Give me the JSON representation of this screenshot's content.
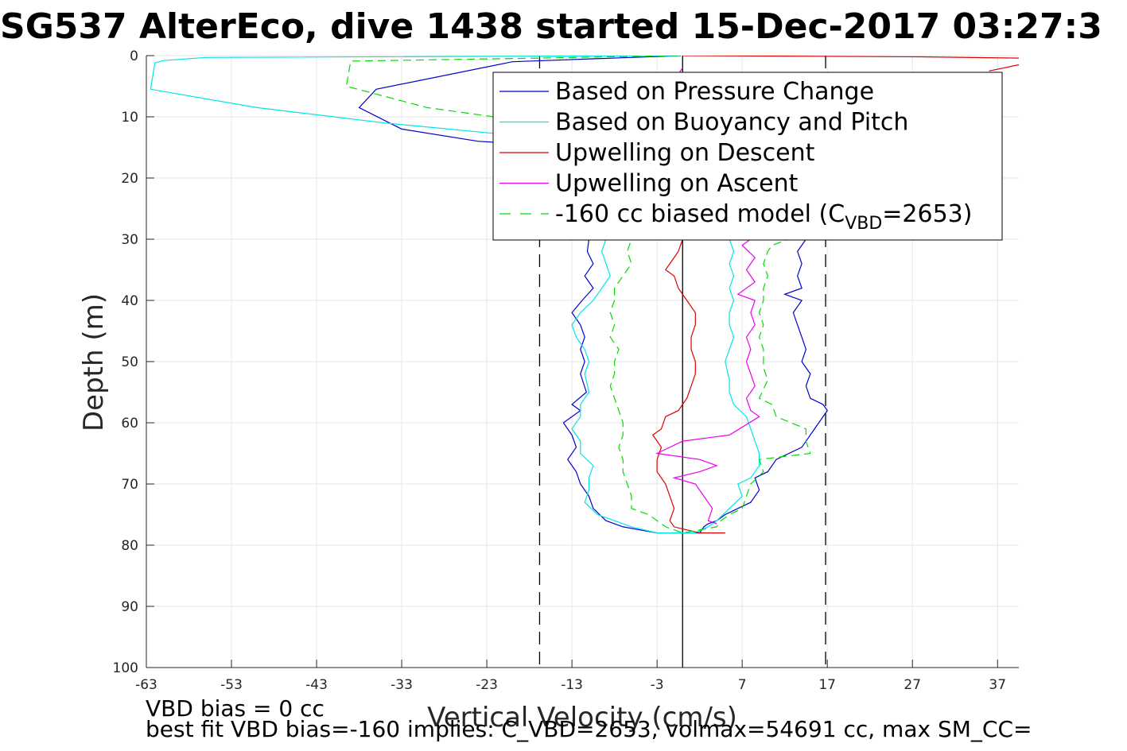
{
  "chart_data": {
    "type": "line",
    "title": "SG537 AlterEco, dive 1438 started 15-Dec-2017 03:27:3",
    "xlabel": "Vertical Velocity (cm/s)",
    "ylabel": "Depth (m)",
    "xlim": [
      -63,
      39.5
    ],
    "ylim": [
      0,
      100
    ],
    "y_reversed": true,
    "grid": true,
    "legend_position": "top-right",
    "xticks": [
      -63,
      -53,
      -43,
      -33,
      -23,
      -13,
      -3,
      7,
      17,
      27,
      37
    ],
    "yticks": [
      0,
      10,
      20,
      30,
      40,
      50,
      60,
      70,
      80,
      90,
      100
    ],
    "reference_lines": [
      {
        "x": 0,
        "style": "solid",
        "color": "#000000"
      },
      {
        "x": -16.8,
        "style": "dashed",
        "color": "#000000"
      },
      {
        "x": 16.8,
        "style": "dashed",
        "color": "#000000"
      }
    ],
    "series": [
      {
        "name": "Based on Pressure Change",
        "color": "#0000cc",
        "dash": "solid",
        "points": [
          [
            -0.2,
            0
          ],
          [
            -20,
            1
          ],
          [
            -36,
            5.5
          ],
          [
            -38,
            8.5
          ],
          [
            -33,
            12
          ],
          [
            -24,
            14
          ],
          [
            -12,
            15
          ],
          [
            -11,
            30
          ],
          [
            -11.2,
            32
          ],
          [
            -10.5,
            34
          ],
          [
            -11.5,
            36
          ],
          [
            -10.5,
            38
          ],
          [
            -11.8,
            40
          ],
          [
            -13,
            42
          ],
          [
            -12,
            44
          ],
          [
            -11.5,
            46
          ],
          [
            -12,
            48
          ],
          [
            -11.5,
            50
          ],
          [
            -12,
            52
          ],
          [
            -11.3,
            55
          ],
          [
            -13,
            57
          ],
          [
            -12,
            58
          ],
          [
            -14,
            60
          ],
          [
            -13,
            62
          ],
          [
            -12.5,
            64
          ],
          [
            -13.5,
            66
          ],
          [
            -12.5,
            68
          ],
          [
            -12,
            70
          ],
          [
            -11,
            72
          ],
          [
            -10.5,
            74
          ],
          [
            -9,
            76
          ],
          [
            -7,
            77
          ],
          [
            -5,
            77.5
          ],
          [
            -3,
            78
          ],
          [
            -1,
            78
          ],
          [
            1,
            78
          ],
          [
            2,
            78
          ],
          [
            2.5,
            77
          ],
          [
            3,
            76.5
          ],
          [
            4,
            76
          ],
          [
            5,
            75
          ],
          [
            6.5,
            74
          ],
          [
            8,
            73
          ],
          [
            9,
            71
          ],
          [
            8.5,
            69
          ],
          [
            10,
            68
          ],
          [
            11,
            66
          ],
          [
            12.5,
            65
          ],
          [
            14,
            64
          ],
          [
            15,
            62
          ],
          [
            17,
            58
          ],
          [
            16.5,
            57
          ],
          [
            15,
            56
          ],
          [
            14.5,
            54
          ],
          [
            15,
            52
          ],
          [
            14,
            50
          ],
          [
            14.5,
            48
          ],
          [
            14,
            46
          ],
          [
            13.5,
            44
          ],
          [
            13,
            42
          ],
          [
            14,
            40
          ],
          [
            12,
            39
          ],
          [
            14,
            38
          ],
          [
            13.5,
            36
          ],
          [
            14,
            34
          ],
          [
            13.5,
            32
          ],
          [
            14.5,
            30
          ]
        ]
      },
      {
        "name": "Based on Buoyancy and Pitch",
        "color": "#00e5e5",
        "dash": "solid",
        "points": [
          [
            -0.3,
            0
          ],
          [
            -56,
            0.3
          ],
          [
            -61,
            0.8
          ],
          [
            -62,
            1.2
          ],
          [
            -62.5,
            5.5
          ],
          [
            -50,
            8.5
          ],
          [
            -35,
            11
          ],
          [
            -20,
            13
          ],
          [
            -10,
            14
          ],
          [
            -9,
            15
          ],
          [
            -9,
            30
          ],
          [
            -9.5,
            32
          ],
          [
            -9,
            34
          ],
          [
            -8.5,
            36
          ],
          [
            -9.5,
            38
          ],
          [
            -10.5,
            40
          ],
          [
            -12,
            42
          ],
          [
            -13,
            44
          ],
          [
            -12.5,
            46
          ],
          [
            -11.5,
            48
          ],
          [
            -11,
            50
          ],
          [
            -11.5,
            52
          ],
          [
            -11,
            55
          ],
          [
            -12,
            57
          ],
          [
            -12,
            59
          ],
          [
            -13,
            61
          ],
          [
            -12,
            63
          ],
          [
            -12,
            65
          ],
          [
            -10.5,
            67
          ],
          [
            -11,
            69
          ],
          [
            -11,
            71
          ],
          [
            -11.5,
            73
          ],
          [
            -10,
            75
          ],
          [
            -8,
            76
          ],
          [
            -6,
            77
          ],
          [
            -3,
            78
          ],
          [
            -1,
            78
          ],
          [
            1.5,
            78
          ],
          [
            3,
            77
          ],
          [
            4,
            76
          ],
          [
            5.5,
            74
          ],
          [
            7,
            72
          ],
          [
            6.5,
            70
          ],
          [
            8,
            69
          ],
          [
            9,
            67
          ],
          [
            9,
            65
          ],
          [
            8.5,
            63
          ],
          [
            8,
            61
          ],
          [
            7.5,
            59
          ],
          [
            6,
            57
          ],
          [
            5.5,
            55
          ],
          [
            5.5,
            53
          ],
          [
            5,
            50
          ],
          [
            5.5,
            48
          ],
          [
            6,
            46
          ],
          [
            5.5,
            44
          ],
          [
            5.5,
            42
          ],
          [
            6,
            40
          ],
          [
            5.5,
            38
          ],
          [
            6,
            36
          ],
          [
            5.5,
            34
          ],
          [
            6,
            32
          ],
          [
            5.5,
            30
          ]
        ]
      },
      {
        "name": "Upwelling on Descent",
        "color": "#dd0000",
        "dash": "solid",
        "points": [
          [
            0,
            0
          ],
          [
            28,
            0.2
          ],
          [
            39.5,
            0.4
          ],
          [
            null,
            null
          ],
          [
            39.5,
            1.5
          ],
          [
            36,
            2.5
          ],
          [
            null,
            null
          ],
          [
            0,
            30
          ],
          [
            -0.5,
            32
          ],
          [
            -1,
            33
          ],
          [
            -2,
            35
          ],
          [
            -1,
            36
          ],
          [
            -0.5,
            38
          ],
          [
            0.5,
            40
          ],
          [
            1.5,
            42
          ],
          [
            1.5,
            44
          ],
          [
            1,
            46
          ],
          [
            1,
            48
          ],
          [
            1.5,
            50
          ],
          [
            1.5,
            52
          ],
          [
            1,
            54
          ],
          [
            0.5,
            56
          ],
          [
            -0.5,
            58
          ],
          [
            -2,
            59
          ],
          [
            -2.5,
            61
          ],
          [
            -3.5,
            62
          ],
          [
            -2.5,
            64
          ],
          [
            -3,
            66
          ],
          [
            -3,
            68
          ],
          [
            -2,
            70
          ],
          [
            -1.5,
            72
          ],
          [
            -1,
            74
          ],
          [
            -1.5,
            76
          ],
          [
            -1,
            77
          ],
          [
            0.5,
            77.5
          ],
          [
            2,
            78
          ],
          [
            5,
            78
          ]
        ]
      },
      {
        "name": "Upwelling on Ascent",
        "color": "#ee00ee",
        "dash": "solid",
        "points": [
          [
            0,
            2
          ],
          [
            -0.5,
            3
          ],
          [
            0,
            4
          ],
          [
            null,
            null
          ],
          [
            4,
            76.5
          ],
          [
            3,
            76
          ],
          [
            3.5,
            74
          ],
          [
            2.5,
            72
          ],
          [
            1.5,
            70
          ],
          [
            -1,
            69
          ],
          [
            2,
            68
          ],
          [
            4,
            67
          ],
          [
            2,
            66
          ],
          [
            -3,
            65
          ],
          [
            0,
            63
          ],
          [
            5.5,
            62
          ],
          [
            9,
            59
          ],
          [
            8,
            58
          ],
          [
            7.5,
            56
          ],
          [
            8.5,
            54
          ],
          [
            8,
            52
          ],
          [
            7.5,
            50
          ],
          [
            8,
            48
          ],
          [
            7.5,
            46
          ],
          [
            8.5,
            44
          ],
          [
            8,
            42
          ],
          [
            8.5,
            40
          ],
          [
            6.5,
            39
          ],
          [
            8.5,
            37
          ],
          [
            7.5,
            35
          ],
          [
            8.5,
            33
          ],
          [
            7,
            31
          ],
          [
            8,
            30
          ]
        ]
      },
      {
        "name": "-160 cc biased model (C_VBD=2653)",
        "color": "#00dd00",
        "dash": "dashed",
        "points": [
          [
            -0.5,
            0
          ],
          [
            -17,
            0.4
          ],
          [
            -39,
            0.9
          ],
          [
            -39.5,
            5
          ],
          [
            -30,
            8.5
          ],
          [
            -17,
            11
          ],
          [
            -6,
            14
          ],
          [
            -5,
            15
          ],
          [
            -6,
            30
          ],
          [
            -6.5,
            32
          ],
          [
            -6,
            34
          ],
          [
            -7,
            36
          ],
          [
            -8,
            38
          ],
          [
            -8,
            40
          ],
          [
            -8.5,
            42
          ],
          [
            -8,
            44
          ],
          [
            -8.5,
            46
          ],
          [
            -7.5,
            48
          ],
          [
            -8,
            50
          ],
          [
            -8,
            52
          ],
          [
            -8.5,
            54
          ],
          [
            -8,
            56
          ],
          [
            -7.5,
            58
          ],
          [
            -7,
            60
          ],
          [
            -7,
            62
          ],
          [
            -7.5,
            64
          ],
          [
            -7,
            66
          ],
          [
            -7,
            68
          ],
          [
            -6.5,
            70
          ],
          [
            -6,
            72
          ],
          [
            -6,
            74
          ],
          [
            -4,
            75
          ],
          [
            -3,
            76
          ],
          [
            -2,
            77
          ],
          [
            0,
            78
          ],
          [
            2,
            77.5
          ],
          [
            4,
            77
          ],
          [
            4.5,
            76
          ],
          [
            5.5,
            75
          ],
          [
            7,
            74
          ],
          [
            7.5,
            72
          ],
          [
            8,
            70
          ],
          [
            9.5,
            68
          ],
          [
            9,
            66
          ],
          [
            15,
            65
          ],
          [
            14.5,
            63
          ],
          [
            14.5,
            61
          ],
          [
            11,
            59
          ],
          [
            10.5,
            57
          ],
          [
            9,
            56
          ],
          [
            10,
            53
          ],
          [
            9.5,
            51
          ],
          [
            9.5,
            48
          ],
          [
            9,
            46
          ],
          [
            9.5,
            44
          ],
          [
            9,
            42
          ],
          [
            9.5,
            40
          ],
          [
            9.5,
            38
          ],
          [
            10,
            36
          ],
          [
            9.5,
            34
          ],
          [
            10,
            32
          ],
          [
            10.5,
            31
          ],
          [
            12.5,
            30
          ]
        ]
      }
    ],
    "legend": {
      "entries": [
        "Based on Pressure Change",
        "Based on Buoyancy and Pitch",
        "Upwelling on Descent",
        "Upwelling on Ascent"
      ],
      "last_entry_prefix": "-160 cc biased model (C",
      "last_entry_sub": "VBD",
      "last_entry_suffix": "=2653)"
    }
  },
  "footer": {
    "line1": "VBD bias = 0 cc",
    "line2": "best fit VBD bias=-160 implies: C_VBD=2653, volmax=54691 cc, max SM_CC="
  }
}
